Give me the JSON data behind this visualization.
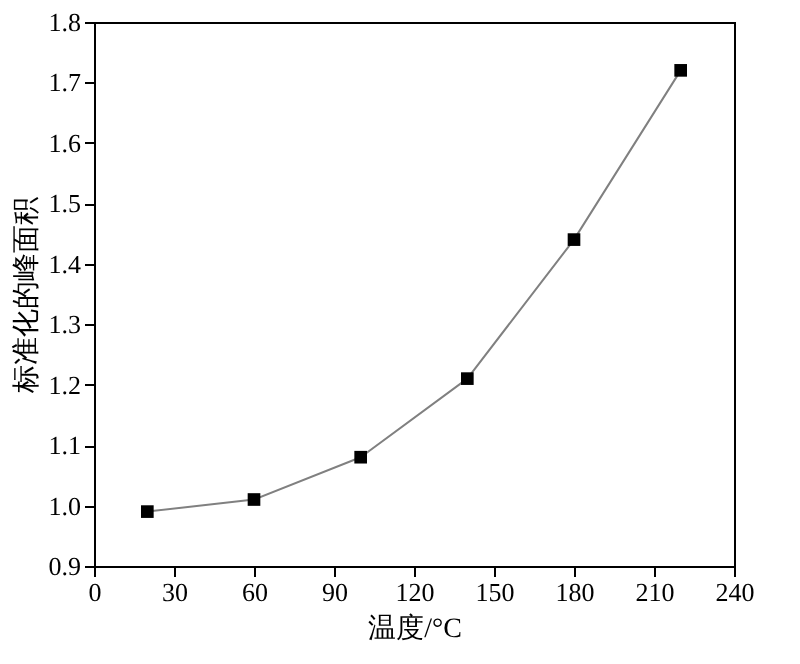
{
  "chart_data": {
    "type": "line",
    "xlabel": "温度/°C",
    "ylabel": "标准化的峰面积",
    "x": [
      20,
      60,
      100,
      140,
      180,
      220
    ],
    "series": [
      {
        "color": "#808080",
        "values": [
          0.99,
          1.01,
          1.08,
          1.21,
          1.44,
          1.72
        ]
      }
    ],
    "xlim": [
      0,
      240
    ],
    "xticks": [
      0,
      30,
      60,
      90,
      120,
      150,
      180,
      210,
      240
    ],
    "ylim": [
      0.9,
      1.8
    ],
    "yticks": [
      0.9,
      {
        "value": 1,
        "label": "1.0"
      },
      1.1,
      1.2,
      1.3,
      1.4,
      1.5,
      1.6,
      1.7,
      {
        "value": 1.8,
        "label": "1.8"
      }
    ],
    "marker": "square",
    "line_style": "solid",
    "grid": false
  }
}
